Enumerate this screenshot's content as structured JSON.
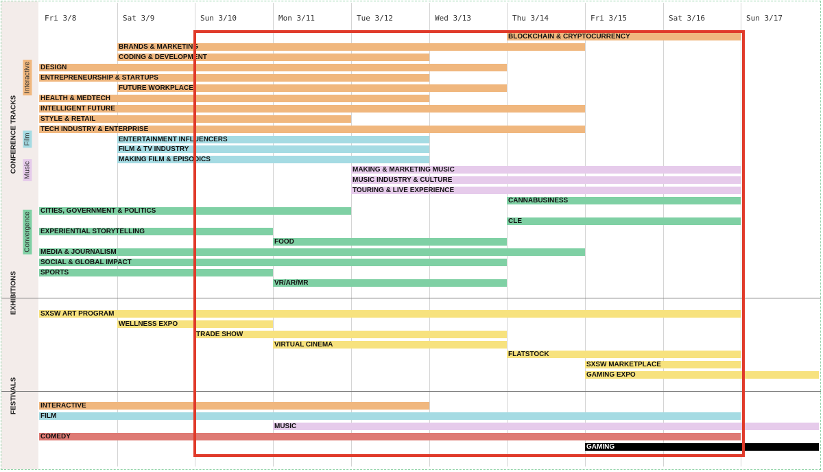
{
  "days": [
    "Fri 3/8",
    "Sat 3/9",
    "Sun 3/10",
    "Mon 3/11",
    "Tue 3/12",
    "Wed 3/13",
    "Thu 3/14",
    "Fri 3/15",
    "Sat 3/16",
    "Sun 3/17"
  ],
  "sections": [
    {
      "label": "CONFERENCE TRACKS",
      "center_row": 9.5
    },
    {
      "label": "EXHIBITIONS",
      "center_row": 25
    },
    {
      "label": "FESTIVALS",
      "center_row": 35
    }
  ],
  "subgroups": [
    {
      "label": "Interactive",
      "color": "#f0b77e",
      "center_row": 4
    },
    {
      "label": "Film",
      "color": "#a5dbe3",
      "center_row": 10
    },
    {
      "label": "Music",
      "color": "#e6cbeb",
      "center_row": 13
    },
    {
      "label": "Convergence",
      "color": "#7fd0a4",
      "center_row": 19
    }
  ],
  "colors": {
    "interactive": "#f0b77e",
    "film": "#a5dbe3",
    "music": "#e6cbeb",
    "convergence": "#7fd0a4",
    "exhibition": "#f7e27e",
    "comedy": "#de7a74",
    "gaming": "#000000"
  },
  "bars": [
    {
      "row": 0,
      "label": "BLOCKCHAIN & CRYPTOCURRENCY",
      "start": 6,
      "end": 9,
      "cat": "interactive"
    },
    {
      "row": 1,
      "label": "BRANDS & MARKETING",
      "start": 1,
      "end": 7,
      "cat": "interactive"
    },
    {
      "row": 2,
      "label": "CODING & DEVELOPMENT",
      "start": 1,
      "end": 5,
      "cat": "interactive"
    },
    {
      "row": 3,
      "label": "DESIGN",
      "start": 0,
      "end": 6,
      "cat": "interactive"
    },
    {
      "row": 4,
      "label": "ENTREPRENEURSHIP & STARTUPS",
      "start": 0,
      "end": 5,
      "cat": "interactive"
    },
    {
      "row": 5,
      "label": "FUTURE WORKPLACE",
      "start": 1,
      "end": 6,
      "cat": "interactive"
    },
    {
      "row": 6,
      "label": "HEALTH & MEDTECH",
      "start": 0,
      "end": 5,
      "cat": "interactive"
    },
    {
      "row": 7,
      "label": "INTELLIGENT FUTURE",
      "start": 0,
      "end": 7,
      "cat": "interactive"
    },
    {
      "row": 8,
      "label": "STYLE & RETAIL",
      "start": 0,
      "end": 4,
      "cat": "interactive"
    },
    {
      "row": 9,
      "label": "TECH INDUSTRY & ENTERPRISE",
      "start": 0,
      "end": 7,
      "cat": "interactive"
    },
    {
      "row": 10,
      "label": "ENTERTAINMENT INFLUENCERS",
      "start": 1,
      "end": 5,
      "cat": "film"
    },
    {
      "row": 11,
      "label": "FILM & TV INDUSTRY",
      "start": 1,
      "end": 5,
      "cat": "film"
    },
    {
      "row": 12,
      "label": "MAKING FILM & EPISODICS",
      "start": 1,
      "end": 5,
      "cat": "film"
    },
    {
      "row": 13,
      "label": "MAKING & MARKETING MUSIC",
      "start": 4,
      "end": 9,
      "cat": "music"
    },
    {
      "row": 14,
      "label": "MUSIC INDUSTRY & CULTURE",
      "start": 4,
      "end": 9,
      "cat": "music"
    },
    {
      "row": 15,
      "label": "TOURING & LIVE EXPERIENCE",
      "start": 4,
      "end": 9,
      "cat": "music"
    },
    {
      "row": 16,
      "label": "CANNABUSINESS",
      "start": 6,
      "end": 9,
      "cat": "convergence"
    },
    {
      "row": 17,
      "label": "CITIES, GOVERNMENT & POLITICS",
      "start": 0,
      "end": 4,
      "cat": "convergence"
    },
    {
      "row": 18,
      "label": "CLE",
      "start": 6,
      "end": 9,
      "cat": "convergence"
    },
    {
      "row": 19,
      "label": "EXPERIENTIAL STORYTELLING",
      "start": 0,
      "end": 3,
      "cat": "convergence"
    },
    {
      "row": 20,
      "label": "FOOD",
      "start": 3,
      "end": 6,
      "cat": "convergence"
    },
    {
      "row": 21,
      "label": "MEDIA & JOURNALISM",
      "start": 0,
      "end": 7,
      "cat": "convergence"
    },
    {
      "row": 22,
      "label": "SOCIAL & GLOBAL IMPACT",
      "start": 0,
      "end": 6,
      "cat": "convergence"
    },
    {
      "row": 23,
      "label": "SPORTS",
      "start": 0,
      "end": 3,
      "cat": "convergence"
    },
    {
      "row": 24,
      "label": "VR/AR/MR",
      "start": 3,
      "end": 6,
      "cat": "convergence"
    },
    {
      "row": 27,
      "label": "SXSW ART PROGRAM",
      "start": 0,
      "end": 9,
      "cat": "exhibition"
    },
    {
      "row": 28,
      "label": "WELLNESS EXPO",
      "start": 1,
      "end": 3,
      "cat": "exhibition"
    },
    {
      "row": 29,
      "label": "TRADE SHOW",
      "start": 2,
      "end": 6,
      "cat": "exhibition"
    },
    {
      "row": 30,
      "label": "VIRTUAL CINEMA",
      "start": 3,
      "end": 6,
      "cat": "exhibition"
    },
    {
      "row": 31,
      "label": "FLATSTOCK",
      "start": 6,
      "end": 9,
      "cat": "exhibition"
    },
    {
      "row": 32,
      "label": "SXSW MARKETPLACE",
      "start": 7,
      "end": 9,
      "cat": "exhibition"
    },
    {
      "row": 33,
      "label": "GAMING EXPO",
      "start": 7,
      "end": 10,
      "cat": "exhibition"
    },
    {
      "row": 36,
      "label": "INTERACTIVE",
      "start": 0,
      "end": 5,
      "cat": "interactive"
    },
    {
      "row": 37,
      "label": "FILM",
      "start": 0,
      "end": 9,
      "cat": "film"
    },
    {
      "row": 38,
      "label": "MUSIC",
      "start": 3,
      "end": 10,
      "cat": "music"
    },
    {
      "row": 39,
      "label": "COMEDY",
      "start": 0,
      "end": 9,
      "cat": "comedy"
    },
    {
      "row": 40,
      "label": "GAMING",
      "start": 7,
      "end": 10,
      "cat": "gaming"
    }
  ]
}
